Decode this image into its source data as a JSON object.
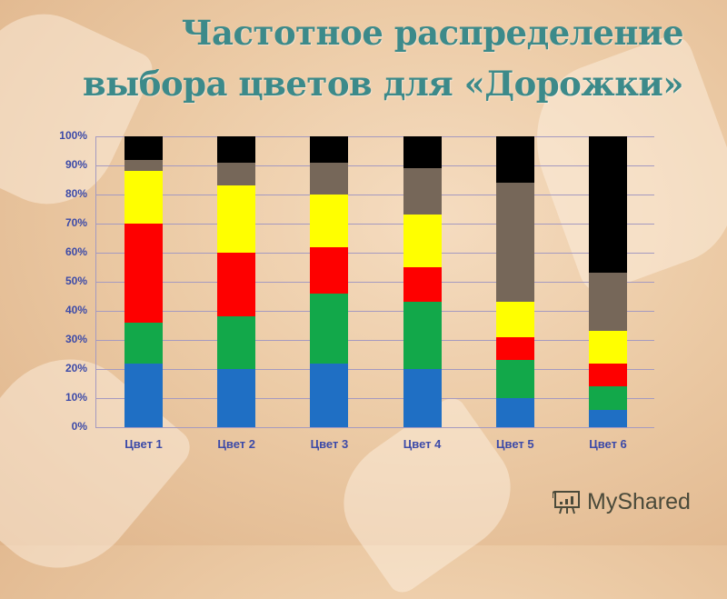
{
  "title": "Частотное распределение выбора цветов для «Дорожки»",
  "watermark": "MyShared",
  "chart_data": {
    "type": "bar",
    "stacked": true,
    "percent_stacked": true,
    "title": "Частотное распределение выбора цветов для «Дорожки»",
    "xlabel": "",
    "ylabel": "",
    "ylim": [
      0,
      100
    ],
    "yticks": [
      "0%",
      "10%",
      "20%",
      "30%",
      "40%",
      "50%",
      "60%",
      "70%",
      "80%",
      "90%",
      "100%"
    ],
    "grid": true,
    "legend": "none",
    "categories": [
      "Цвет 1",
      "Цвет 2",
      "Цвет 3",
      "Цвет 4",
      "Цвет 5",
      "Цвет 6"
    ],
    "series": [
      {
        "name": "blue",
        "color": "#1f6fc4",
        "values": [
          22,
          20,
          22,
          20,
          10,
          6
        ]
      },
      {
        "name": "green",
        "color": "#12a84a",
        "values": [
          14,
          18,
          24,
          23,
          13,
          8
        ]
      },
      {
        "name": "red",
        "color": "#fe0000",
        "values": [
          34,
          22,
          16,
          12,
          8,
          8
        ]
      },
      {
        "name": "yellow",
        "color": "#ffff00",
        "values": [
          18,
          23,
          18,
          18,
          12,
          11
        ]
      },
      {
        "name": "gray",
        "color": "#766759",
        "values": [
          4,
          8,
          11,
          16,
          41,
          20
        ]
      },
      {
        "name": "black",
        "color": "#000000",
        "values": [
          8,
          9,
          9,
          11,
          16,
          47
        ]
      }
    ]
  }
}
